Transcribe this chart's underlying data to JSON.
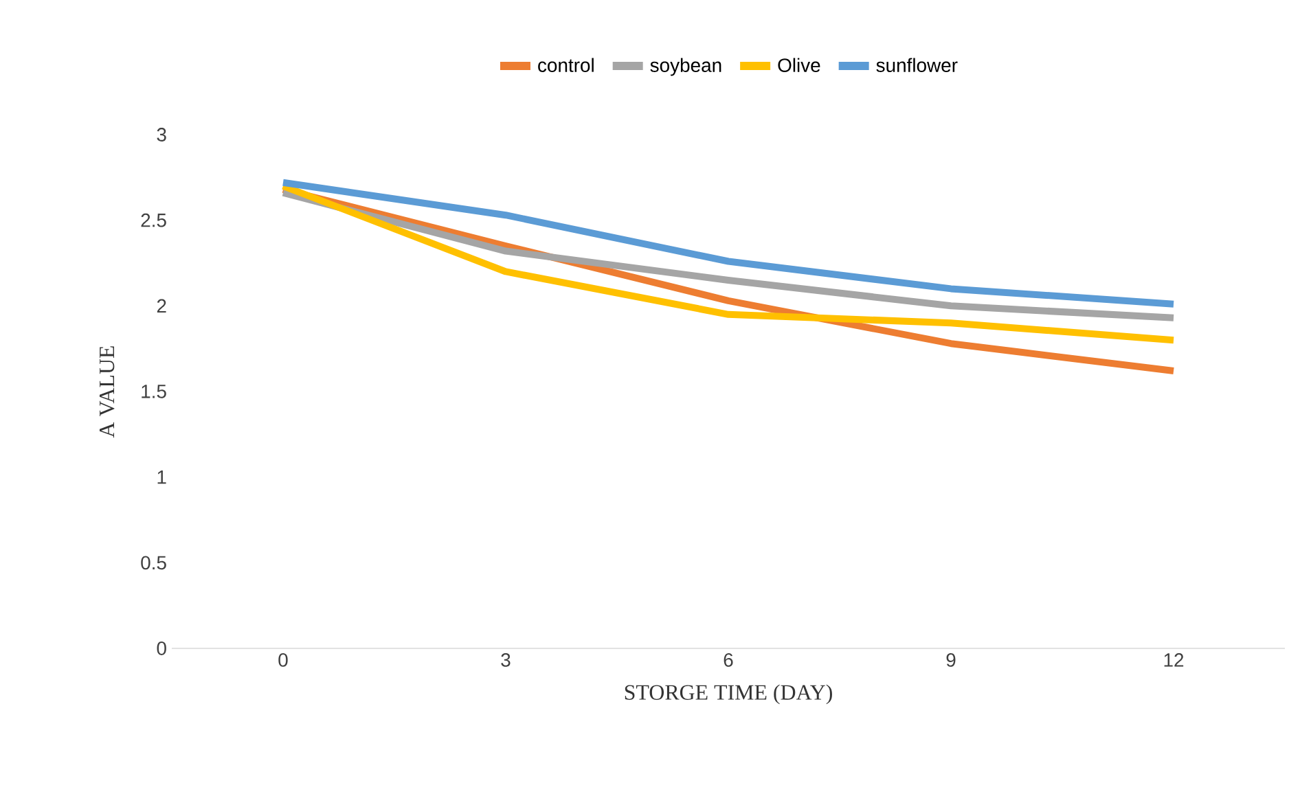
{
  "chart_data": {
    "type": "line",
    "xlabel": "STORGE TIME (DAY)",
    "ylabel": "A VALUE",
    "categories": [
      "0",
      "3",
      "6",
      "9",
      "12"
    ],
    "series": [
      {
        "name": "control",
        "color": "#ed7d31",
        "values": [
          2.68,
          2.35,
          2.03,
          1.78,
          1.62
        ]
      },
      {
        "name": "soybean",
        "color": "#a5a5a5",
        "values": [
          2.66,
          2.32,
          2.15,
          2.0,
          1.93
        ]
      },
      {
        "name": "Olive",
        "color": "#ffc000",
        "values": [
          2.7,
          2.2,
          1.95,
          1.9,
          1.8
        ]
      },
      {
        "name": "sunflower",
        "color": "#5b9bd5",
        "values": [
          2.72,
          2.53,
          2.26,
          2.1,
          2.01
        ]
      }
    ],
    "ylim": [
      0,
      3
    ],
    "yticks": [
      0,
      0.5,
      1,
      1.5,
      2,
      2.5,
      3
    ],
    "grid": false,
    "legend": "top",
    "marker": "none",
    "line_style": "solid"
  }
}
